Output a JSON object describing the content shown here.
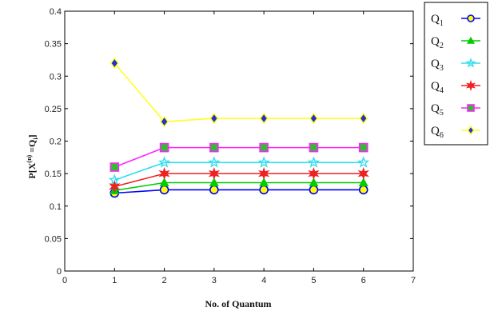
{
  "chart_data": {
    "type": "line",
    "xlabel": "No. of Quantum",
    "ylabel_parts": {
      "p": "P[",
      "x": "X",
      "sup": "(n)",
      "eq": " =",
      "q": "Q",
      "sub": "i",
      "close": "]"
    },
    "xlim": [
      0,
      7
    ],
    "ylim": [
      0,
      0.4
    ],
    "xticks": [
      0,
      1,
      2,
      3,
      4,
      5,
      6,
      7
    ],
    "yticks": [
      0,
      0.05,
      0.1,
      0.15,
      0.2,
      0.25,
      0.3,
      0.35,
      0.4
    ],
    "x": [
      1,
      2,
      3,
      4,
      5,
      6
    ],
    "grid": false,
    "legend_position": "outside-right",
    "series": [
      {
        "name": "Q",
        "sub": "1",
        "color": "#0000ff",
        "marker": "circle",
        "face": "#ffff00",
        "values": [
          0.12,
          0.125,
          0.125,
          0.125,
          0.125,
          0.125
        ]
      },
      {
        "name": "Q",
        "sub": "2",
        "color": "#00cc00",
        "marker": "triangle",
        "face": "#00cc00",
        "values": [
          0.124,
          0.136,
          0.136,
          0.136,
          0.136,
          0.136
        ]
      },
      {
        "name": "Q",
        "sub": "3",
        "color": "#33ddee",
        "marker": "star",
        "face": "#33ddee",
        "values": [
          0.14,
          0.167,
          0.167,
          0.167,
          0.167,
          0.167
        ]
      },
      {
        "name": "Q",
        "sub": "4",
        "color": "#ee2222",
        "marker": "hexstar",
        "face": "#ee2222",
        "values": [
          0.13,
          0.15,
          0.15,
          0.15,
          0.15,
          0.15
        ]
      },
      {
        "name": "Q",
        "sub": "5",
        "color": "#ff22ff",
        "marker": "square",
        "face": "#33bb33",
        "values": [
          0.16,
          0.19,
          0.19,
          0.19,
          0.19,
          0.19
        ]
      },
      {
        "name": "Q",
        "sub": "6",
        "color": "#ffff22",
        "marker": "diamond",
        "face": "#2233cc",
        "values": [
          0.32,
          0.23,
          0.235,
          0.235,
          0.235,
          0.235
        ]
      }
    ]
  }
}
